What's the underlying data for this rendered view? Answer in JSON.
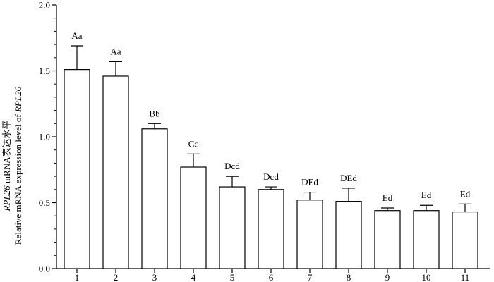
{
  "chart_data": {
    "type": "bar",
    "title": "",
    "xlabel": "",
    "ylabel_line1_italic": "RPL26",
    "ylabel_line1_rest": " mRNA表达水平",
    "ylabel_line2_prefix": "Relative mRNA expression level of ",
    "ylabel_line2_italic": "RPL26",
    "ylim": [
      0,
      2.0
    ],
    "yticks": [
      "0.0",
      "0.5",
      "1.0",
      "1.5",
      "2.0"
    ],
    "ytick_values": [
      0,
      0.5,
      1.0,
      1.5,
      2.0
    ],
    "categories": [
      "1",
      "2",
      "3",
      "4",
      "5",
      "6",
      "7",
      "8",
      "9",
      "10",
      "11"
    ],
    "values": [
      1.51,
      1.46,
      1.06,
      0.77,
      0.62,
      0.6,
      0.52,
      0.51,
      0.44,
      0.44,
      0.43
    ],
    "error_upper": [
      1.69,
      1.57,
      1.1,
      0.87,
      0.7,
      0.62,
      0.58,
      0.61,
      0.46,
      0.48,
      0.49
    ],
    "labels": [
      "Aa",
      "Aa",
      "Bb",
      "Cc",
      "Dcd",
      "Dcd",
      "DEd",
      "DEd",
      "Ed",
      "Ed",
      "Ed"
    ],
    "grid": false,
    "legend": "none",
    "bar_fill": "#ffffff",
    "bar_stroke": "#000000"
  }
}
